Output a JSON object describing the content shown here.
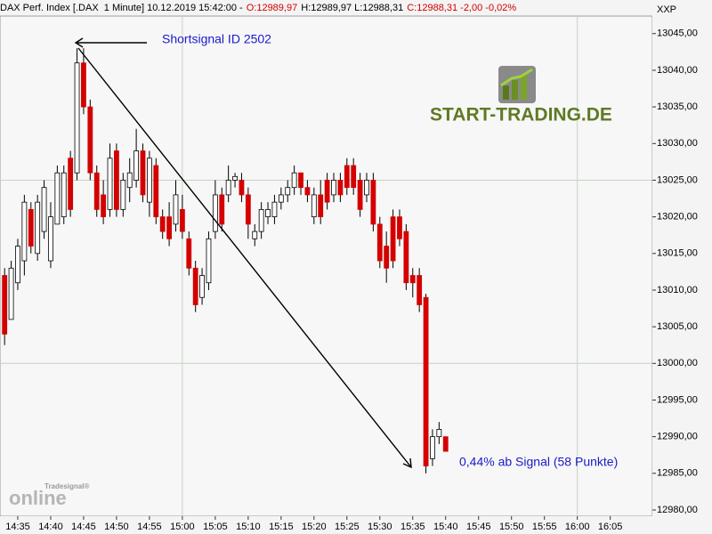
{
  "header": {
    "parts": [
      "DAX Perf. Index [.DAX  1 Minute] 10.12.2019 15:42:00 -",
      "O:12989,97",
      "H:12989,97 L:12988,31",
      "C:12988,31 -2,00 -0,02%"
    ]
  },
  "chart_data": {
    "type": "candlestick",
    "symbol_label": "XXP",
    "annotation_signal": "Shortsignal ID 2502",
    "annotation_result": "0,44% ab Signal (58 Punkte)",
    "logo_text": "START-TRADING.DE",
    "watermark_brand": "Tradesignal®",
    "watermark_text": "online",
    "up_color": "#ffffff",
    "down_color": "#d40000",
    "x": [
      873,
      874,
      875,
      876,
      877,
      878,
      879,
      880,
      881,
      882,
      883,
      884,
      885,
      886,
      887,
      888,
      889,
      890,
      891,
      892,
      893,
      894,
      895,
      896,
      897,
      898,
      899,
      900,
      901,
      902,
      903,
      904,
      905,
      906,
      907,
      908,
      909,
      910,
      911,
      912,
      913,
      914,
      915,
      916,
      917,
      918,
      919,
      920,
      921,
      922,
      923,
      924,
      925,
      926,
      927,
      928,
      929,
      930,
      931,
      932,
      933,
      934,
      935,
      936,
      937,
      938,
      939,
      940
    ],
    "open": [
      13012,
      13006,
      13011,
      13014,
      13021,
      13015,
      13018,
      13014,
      13019,
      13020,
      13028,
      13026,
      13041,
      13035,
      13026,
      13023,
      13021,
      13029,
      13021,
      13024,
      13025,
      13029,
      13022,
      13027,
      13020,
      13020,
      13019,
      13021,
      13017,
      13013,
      13009,
      13011,
      13018,
      13023,
      13023,
      13025,
      13025,
      13023,
      13017,
      13018,
      13020,
      13020,
      13022,
      13023,
      13024,
      13026,
      13024,
      13020,
      13023,
      13025,
      13023,
      13025,
      13027,
      13027,
      13025,
      13023,
      13025,
      13019,
      13016,
      13020,
      13020,
      13018,
      13012,
      13012,
      13009,
      12987,
      12990,
      12990
    ],
    "high": [
      13013,
      13014,
      13017,
      13023,
      13022,
      13023,
      13025,
      13022,
      13027,
      13027,
      13029,
      13043,
      13043,
      13036,
      13027,
      13025,
      13030,
      13030,
      13026,
      13028,
      13032,
      13030,
      13029,
      13028,
      13021,
      13022,
      13025,
      13023,
      13018,
      13014,
      13013,
      13018,
      13025,
      13024,
      13027,
      13026,
      13026,
      13024,
      13019,
      13022,
      13022,
      13023,
      13024,
      13025,
      13027,
      13026,
      13025,
      13024,
      13025,
      13026,
      13026,
      13026,
      13028,
      13028,
      13026,
      13026,
      13026,
      13020,
      13018,
      13021,
      13021,
      13019,
      13013,
      13013,
      13009.5,
      12991,
      12992,
      12990
    ],
    "low": [
      13002.5,
      13006,
      13010,
      13012,
      13015,
      13014,
      13017,
      13013,
      13019,
      13019,
      13020,
      13025,
      13034,
      13025,
      13020,
      13019,
      13020,
      13020,
      13020,
      13022,
      13024,
      13022,
      13020,
      13019,
      13017,
      13016,
      13018,
      13017,
      13012,
      13007,
      13008,
      13010,
      13017,
      13018,
      13022,
      13024,
      13022,
      13017,
      13016,
      13017,
      13019,
      13019,
      13021,
      13022,
      13023,
      13023,
      13022,
      13019,
      13019,
      13021,
      13022,
      13022,
      13023,
      13023,
      13020,
      13022,
      13018,
      13013,
      13011,
      13013,
      13016,
      13010,
      13009,
      13007,
      12985,
      12986,
      12989,
      12988
    ],
    "close": [
      13004,
      13013,
      13016,
      13022,
      13016,
      13022,
      13024,
      13020,
      13026,
      13026,
      13021,
      13041,
      13035,
      13026,
      13021,
      13020,
      13028,
      13021,
      13025,
      13026,
      13029,
      13023,
      13028,
      13020,
      13018,
      13017,
      13023,
      13018,
      13013,
      13008,
      13012,
      13017,
      13023,
      13019,
      13025,
      13025.5,
      13023,
      13019,
      13018,
      13021,
      13021,
      13022,
      13023,
      13024,
      13026,
      13024,
      13023,
      13023,
      13020,
      13022,
      13025,
      13023,
      13024,
      13024,
      13021,
      13025,
      13019,
      13014,
      13013,
      13014,
      13017,
      13011,
      13011,
      13008,
      12986,
      12990,
      12991,
      12988
    ],
    "xlim": [
      872.3,
      971.4
    ],
    "ylim": [
      12979.15,
      13047.4
    ],
    "xticks": [
      {
        "value": 875,
        "label": "14:35"
      },
      {
        "value": 880,
        "label": "14:40"
      },
      {
        "value": 885,
        "label": "14:45"
      },
      {
        "value": 890,
        "label": "14:50"
      },
      {
        "value": 895,
        "label": "14:55"
      },
      {
        "value": 900,
        "label": "15:00"
      },
      {
        "value": 905,
        "label": "15:05"
      },
      {
        "value": 910,
        "label": "15:10"
      },
      {
        "value": 915,
        "label": "15:15"
      },
      {
        "value": 920,
        "label": "15:20"
      },
      {
        "value": 925,
        "label": "15:25"
      },
      {
        "value": 930,
        "label": "15:30"
      },
      {
        "value": 935,
        "label": "15:35"
      },
      {
        "value": 940,
        "label": "15:40"
      },
      {
        "value": 945,
        "label": "15:45"
      },
      {
        "value": 950,
        "label": "15:50"
      },
      {
        "value": 955,
        "label": "15:55"
      },
      {
        "value": 960,
        "label": "16:00"
      },
      {
        "value": 965,
        "label": "16:05"
      }
    ],
    "yticks": [
      {
        "value": 12980,
        "label": "12980,00"
      },
      {
        "value": 12985,
        "label": "12985,00"
      },
      {
        "value": 12990,
        "label": "12990,00"
      },
      {
        "value": 12995,
        "label": "12995,00"
      },
      {
        "value": 13000,
        "label": "13000,00"
      },
      {
        "value": 13005,
        "label": "13005,00"
      },
      {
        "value": 13010,
        "label": "13010,00"
      },
      {
        "value": 13015,
        "label": "13015,00"
      },
      {
        "value": 13020,
        "label": "13020,00"
      },
      {
        "value": 13025,
        "label": "13025,00"
      },
      {
        "value": 13030,
        "label": "13030,00"
      },
      {
        "value": 13035,
        "label": "13035,00"
      },
      {
        "value": 13040,
        "label": "13040,00"
      },
      {
        "value": 13045,
        "label": "13045,00"
      }
    ],
    "xgrid": [
      900,
      960
    ],
    "ygrid": [
      13000,
      13025
    ]
  }
}
